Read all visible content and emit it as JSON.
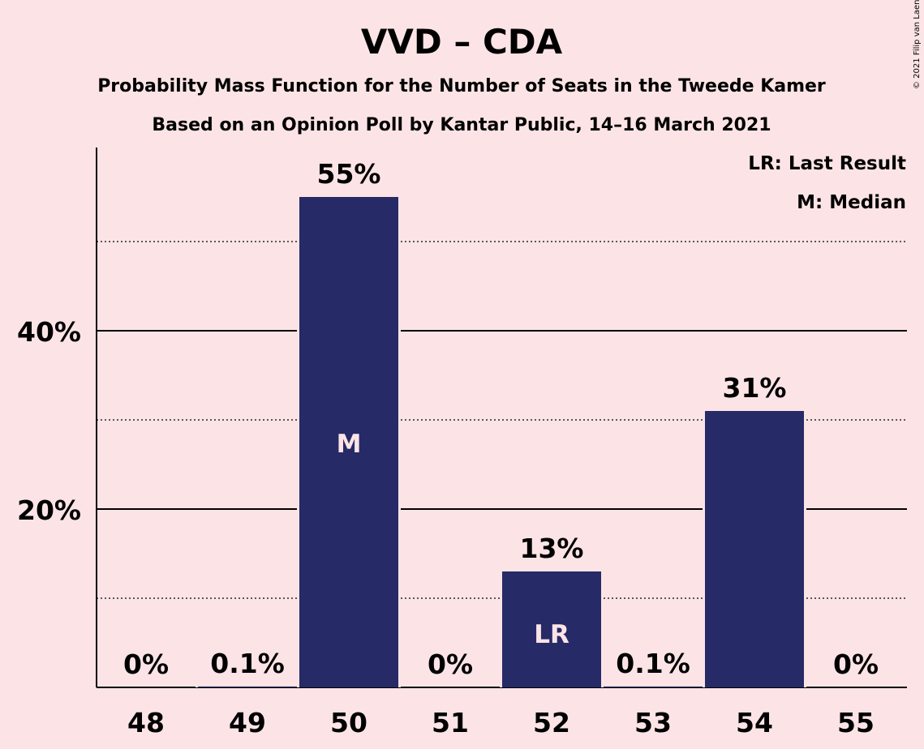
{
  "chart_data": {
    "type": "bar",
    "title": "VVD – CDA",
    "subtitle_1": "Probability Mass Function for the Number of Seats in the Tweede Kamer",
    "subtitle_2": "Based on an Opinion Poll by Kantar Public, 14–16 March 2021",
    "categories": [
      "48",
      "49",
      "50",
      "51",
      "52",
      "53",
      "54",
      "55"
    ],
    "values": [
      0,
      0.1,
      55,
      0,
      13,
      0.1,
      31,
      0
    ],
    "value_labels": [
      "0%",
      "0.1%",
      "55%",
      "0%",
      "13%",
      "0.1%",
      "31%",
      "0%"
    ],
    "bar_markers": [
      "",
      "",
      "M",
      "",
      "LR",
      "",
      "",
      ""
    ],
    "ylim": [
      0,
      60
    ],
    "yticks": [
      20,
      40
    ],
    "ytick_labels": [
      "20%",
      "40%"
    ],
    "minor_gridlines": [
      10,
      30,
      50
    ],
    "legend": [
      "LR: Last Result",
      "M: Median"
    ],
    "legend_position": "top-right",
    "copyright": "© 2021 Filip van Laenen",
    "colors": {
      "bar": "#262a66",
      "background": "#fce4e6",
      "marker_text": "#fce4e6"
    }
  }
}
